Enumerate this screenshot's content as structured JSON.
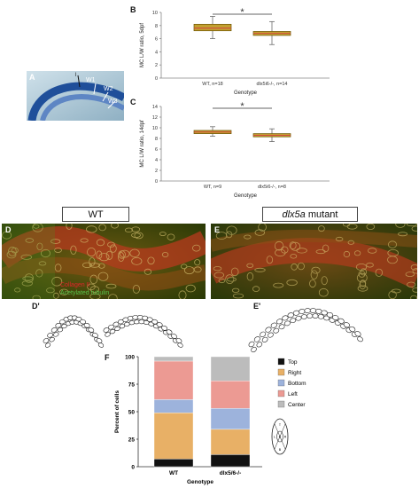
{
  "panels": {
    "A": {
      "letter": "A",
      "labels": [
        "W1",
        "W2",
        "W3"
      ],
      "tick": "l"
    },
    "B": {
      "letter": "B"
    },
    "C": {
      "letter": "C"
    },
    "D": {
      "letter": "D",
      "stain_red": "Collagen II",
      "stain_green": "Acetylated tubulin"
    },
    "E": {
      "letter": "E"
    },
    "Dp": {
      "letter": "D'"
    },
    "Ep": {
      "letter": "E'"
    },
    "F": {
      "letter": "F"
    }
  },
  "headers": {
    "wt": "WT",
    "mutant_italic": "dlx5a",
    "mutant_rest": " mutant"
  },
  "chart_data": [
    {
      "type": "box",
      "panel": "B",
      "ylabel": "MC L/W ratio, 5dpf",
      "xlabel": "Genotype",
      "ylim": [
        0,
        10
      ],
      "yticks": [
        0,
        2,
        4,
        6,
        8,
        10
      ],
      "categories": [
        "WT, n=18",
        "dlx5i6-/-, n=14"
      ],
      "boxes": [
        {
          "min": 6.0,
          "q1": 7.2,
          "median": 7.6,
          "q3": 8.2,
          "max": 9.4
        },
        {
          "min": 5.1,
          "q1": 6.5,
          "median": 6.8,
          "q3": 7.1,
          "max": 8.6
        }
      ],
      "significance": "*"
    },
    {
      "type": "box",
      "panel": "C",
      "ylabel": "MC L/W ratio, 14dpf",
      "xlabel": "Genotype",
      "ylim": [
        0,
        14
      ],
      "yticks": [
        0,
        2,
        4,
        6,
        8,
        10,
        12,
        14
      ],
      "categories": [
        "WT, n=9",
        "dlx5i6-/-, n=8"
      ],
      "boxes": [
        {
          "min": 8.4,
          "q1": 8.9,
          "median": 9.2,
          "q3": 9.5,
          "max": 10.2
        },
        {
          "min": 7.4,
          "q1": 8.3,
          "median": 8.6,
          "q3": 8.9,
          "max": 9.8
        }
      ],
      "significance": "*"
    },
    {
      "type": "bar",
      "subtype": "stacked-percent",
      "panel": "F",
      "ylabel": "Percent of cells",
      "xlabel": "Genotype",
      "ylim": [
        0,
        100
      ],
      "yticks": [
        0,
        25,
        50,
        75,
        100
      ],
      "categories": [
        "WT",
        "dlx5/6-/-"
      ],
      "series": [
        {
          "name": "Top",
          "color": "#111111",
          "values": [
            7,
            11
          ]
        },
        {
          "name": "Right",
          "color": "#e8b066",
          "values": [
            42,
            23
          ]
        },
        {
          "name": "Bottom",
          "color": "#9db3dc",
          "values": [
            12,
            19
          ]
        },
        {
          "name": "Left",
          "color": "#ec9a93",
          "values": [
            35,
            25
          ]
        },
        {
          "name": "Center",
          "color": "#bcbcbc",
          "values": [
            4,
            22
          ]
        }
      ],
      "legend_position": "right",
      "inset_letters": [
        "T",
        "L",
        "C",
        "R",
        "B"
      ]
    }
  ],
  "colors": {
    "box_fill": "#c2a030",
    "box_edge": "#6b5300",
    "median": "#d34141",
    "whisker": "#6b6b6b",
    "axis": "#888888",
    "sig": "#333333"
  }
}
